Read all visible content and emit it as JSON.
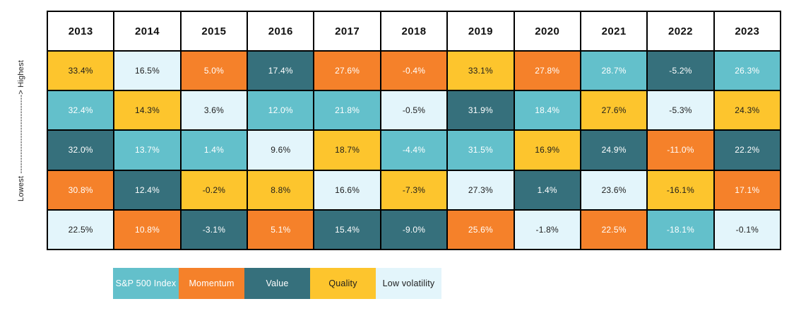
{
  "axis": {
    "label": "Lowest -----------------------------> Highest"
  },
  "categories": {
    "sp500": {
      "label": "S&P 500 Index",
      "bg": "#63c0cb",
      "text": "#ffffff"
    },
    "momentum": {
      "label": "Momentum",
      "bg": "#f5812a",
      "text": "#ffffff"
    },
    "value": {
      "label": "Value",
      "bg": "#36707c",
      "text": "#ffffff"
    },
    "quality": {
      "label": "Quality",
      "bg": "#fdc52d",
      "text": "#1d1d1d"
    },
    "lowvol": {
      "label": "Low volatility",
      "bg": "#e3f5fb",
      "text": "#1d1d1d"
    }
  },
  "legend_order": [
    "sp500",
    "momentum",
    "value",
    "quality",
    "lowvol"
  ],
  "chart_data": {
    "type": "heatmap",
    "title": "",
    "ylabel": "Lowest -> Highest",
    "columns": [
      "2013",
      "2014",
      "2015",
      "2016",
      "2017",
      "2018",
      "2019",
      "2020",
      "2021",
      "2022",
      "2023"
    ],
    "rows": [
      {
        "rank": 1,
        "cells": [
          {
            "value": "33.4%",
            "category": "quality"
          },
          {
            "value": "16.5%",
            "category": "lowvol"
          },
          {
            "value": "5.0%",
            "category": "momentum"
          },
          {
            "value": "17.4%",
            "category": "value"
          },
          {
            "value": "27.6%",
            "category": "momentum"
          },
          {
            "value": "-0.4%",
            "category": "momentum"
          },
          {
            "value": "33.1%",
            "category": "quality"
          },
          {
            "value": "27.8%",
            "category": "momentum"
          },
          {
            "value": "28.7%",
            "category": "sp500"
          },
          {
            "value": "-5.2%",
            "category": "value"
          },
          {
            "value": "26.3%",
            "category": "sp500"
          }
        ]
      },
      {
        "rank": 2,
        "cells": [
          {
            "value": "32.4%",
            "category": "sp500"
          },
          {
            "value": "14.3%",
            "category": "quality"
          },
          {
            "value": "3.6%",
            "category": "lowvol"
          },
          {
            "value": "12.0%",
            "category": "sp500"
          },
          {
            "value": "21.8%",
            "category": "sp500"
          },
          {
            "value": "-0.5%",
            "category": "lowvol"
          },
          {
            "value": "31.9%",
            "category": "value"
          },
          {
            "value": "18.4%",
            "category": "sp500"
          },
          {
            "value": "27.6%",
            "category": "quality"
          },
          {
            "value": "-5.3%",
            "category": "lowvol"
          },
          {
            "value": "24.3%",
            "category": "quality"
          }
        ]
      },
      {
        "rank": 3,
        "cells": [
          {
            "value": "32.0%",
            "category": "value"
          },
          {
            "value": "13.7%",
            "category": "sp500"
          },
          {
            "value": "1.4%",
            "category": "sp500"
          },
          {
            "value": "9.6%",
            "category": "lowvol"
          },
          {
            "value": "18.7%",
            "category": "quality"
          },
          {
            "value": "-4.4%",
            "category": "sp500"
          },
          {
            "value": "31.5%",
            "category": "sp500"
          },
          {
            "value": "16.9%",
            "category": "quality"
          },
          {
            "value": "24.9%",
            "category": "value"
          },
          {
            "value": "-11.0%",
            "category": "momentum"
          },
          {
            "value": "22.2%",
            "category": "value"
          }
        ]
      },
      {
        "rank": 4,
        "cells": [
          {
            "value": "30.8%",
            "category": "momentum"
          },
          {
            "value": "12.4%",
            "category": "value"
          },
          {
            "value": "-0.2%",
            "category": "quality"
          },
          {
            "value": "8.8%",
            "category": "quality"
          },
          {
            "value": "16.6%",
            "category": "lowvol"
          },
          {
            "value": "-7.3%",
            "category": "quality"
          },
          {
            "value": "27.3%",
            "category": "lowvol"
          },
          {
            "value": "1.4%",
            "category": "value"
          },
          {
            "value": "23.6%",
            "category": "lowvol"
          },
          {
            "value": "-16.1%",
            "category": "quality"
          },
          {
            "value": "17.1%",
            "category": "momentum"
          }
        ]
      },
      {
        "rank": 5,
        "cells": [
          {
            "value": "22.5%",
            "category": "lowvol"
          },
          {
            "value": "10.8%",
            "category": "momentum"
          },
          {
            "value": "-3.1%",
            "category": "value"
          },
          {
            "value": "5.1%",
            "category": "momentum"
          },
          {
            "value": "15.4%",
            "category": "value"
          },
          {
            "value": "-9.0%",
            "category": "value"
          },
          {
            "value": "25.6%",
            "category": "momentum"
          },
          {
            "value": "-1.8%",
            "category": "lowvol"
          },
          {
            "value": "22.5%",
            "category": "momentum"
          },
          {
            "value": "-18.1%",
            "category": "sp500"
          },
          {
            "value": "-0.1%",
            "category": "lowvol"
          }
        ]
      }
    ]
  }
}
